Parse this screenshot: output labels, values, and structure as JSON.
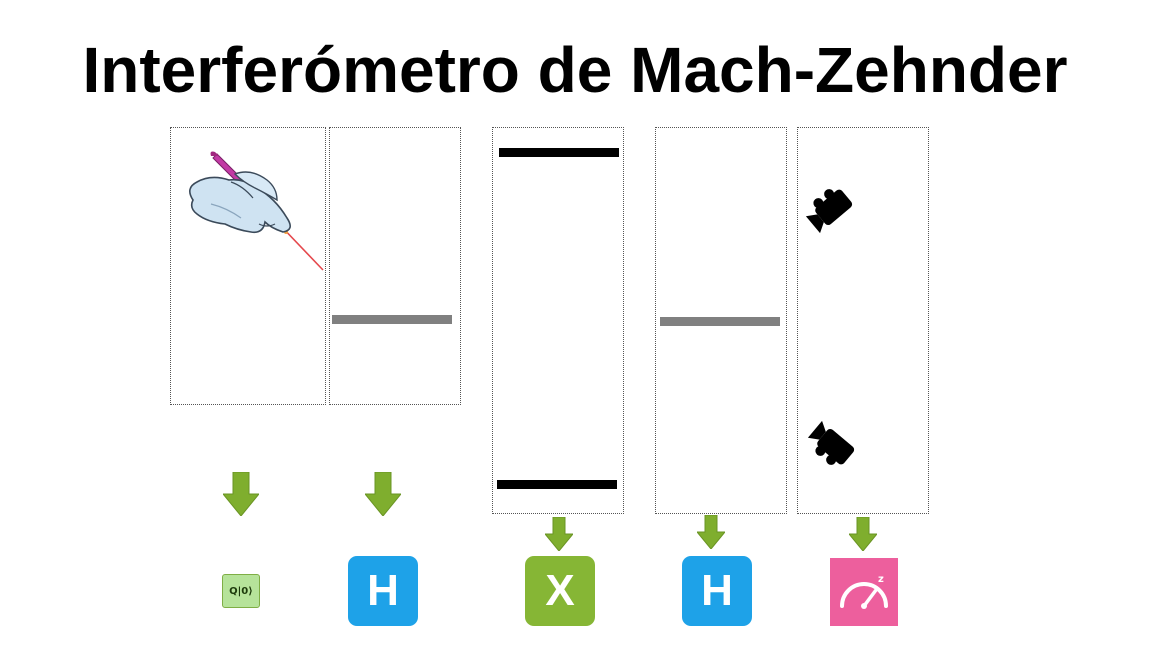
{
  "title": "Interferómetro de Mach-Zehnder",
  "colors": {
    "arrow": "#7fae2e",
    "hadamard": "#1ea2e8",
    "x_gate": "#86b635",
    "measure": "#ed5f9d",
    "qubit_init": "#b6e39a",
    "mirror": "#000000",
    "beam_splitter": "#808080",
    "box_border": "#555555"
  },
  "stages": [
    {
      "id": "laser",
      "icon": "hand-laser-pointer-icon",
      "gate": "qubit-init"
    },
    {
      "id": "beam-splitter-1",
      "element": "half-silvered-mirror",
      "gate": "hadamard"
    },
    {
      "id": "mirrors",
      "element": "two-mirrors",
      "gate": "x"
    },
    {
      "id": "beam-splitter-2",
      "element": "half-silvered-mirror",
      "gate": "hadamard"
    },
    {
      "id": "detectors",
      "icon": "camera-detector-icon",
      "gate": "measure"
    }
  ],
  "gates": {
    "qubit_init": "Q|0⟩",
    "h1": "H",
    "x": "X",
    "h2": "H",
    "measure_icon": "measurement-gauge-icon"
  }
}
